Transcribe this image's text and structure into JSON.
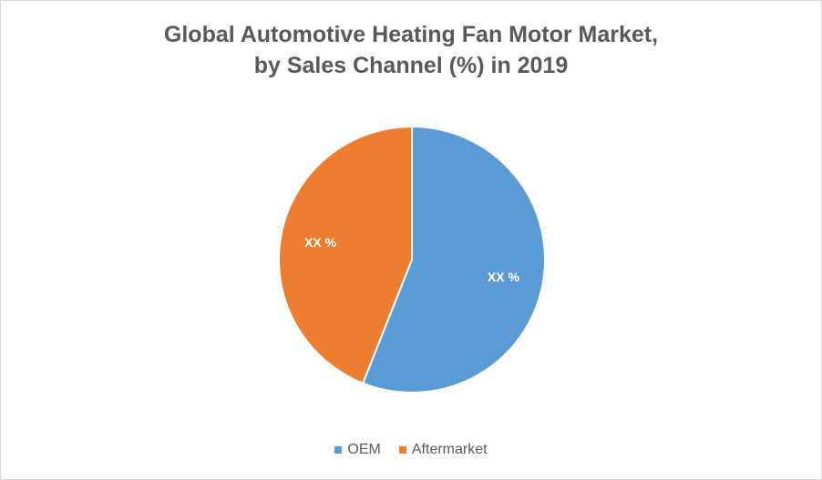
{
  "chart_data": {
    "type": "pie",
    "title_line1": "Global Automotive Heating Fan Motor Market,",
    "title_line2": "by Sales Channel (%) in 2019",
    "categories": [
      "OEM",
      "Aftermarket"
    ],
    "values": [
      56,
      44
    ],
    "data_labels": [
      "XX %",
      "XX %"
    ],
    "colors": [
      "#5B9BD5",
      "#ED7D31"
    ],
    "legend_position": "bottom",
    "start_angle": "12 o'clock, clockwise"
  }
}
